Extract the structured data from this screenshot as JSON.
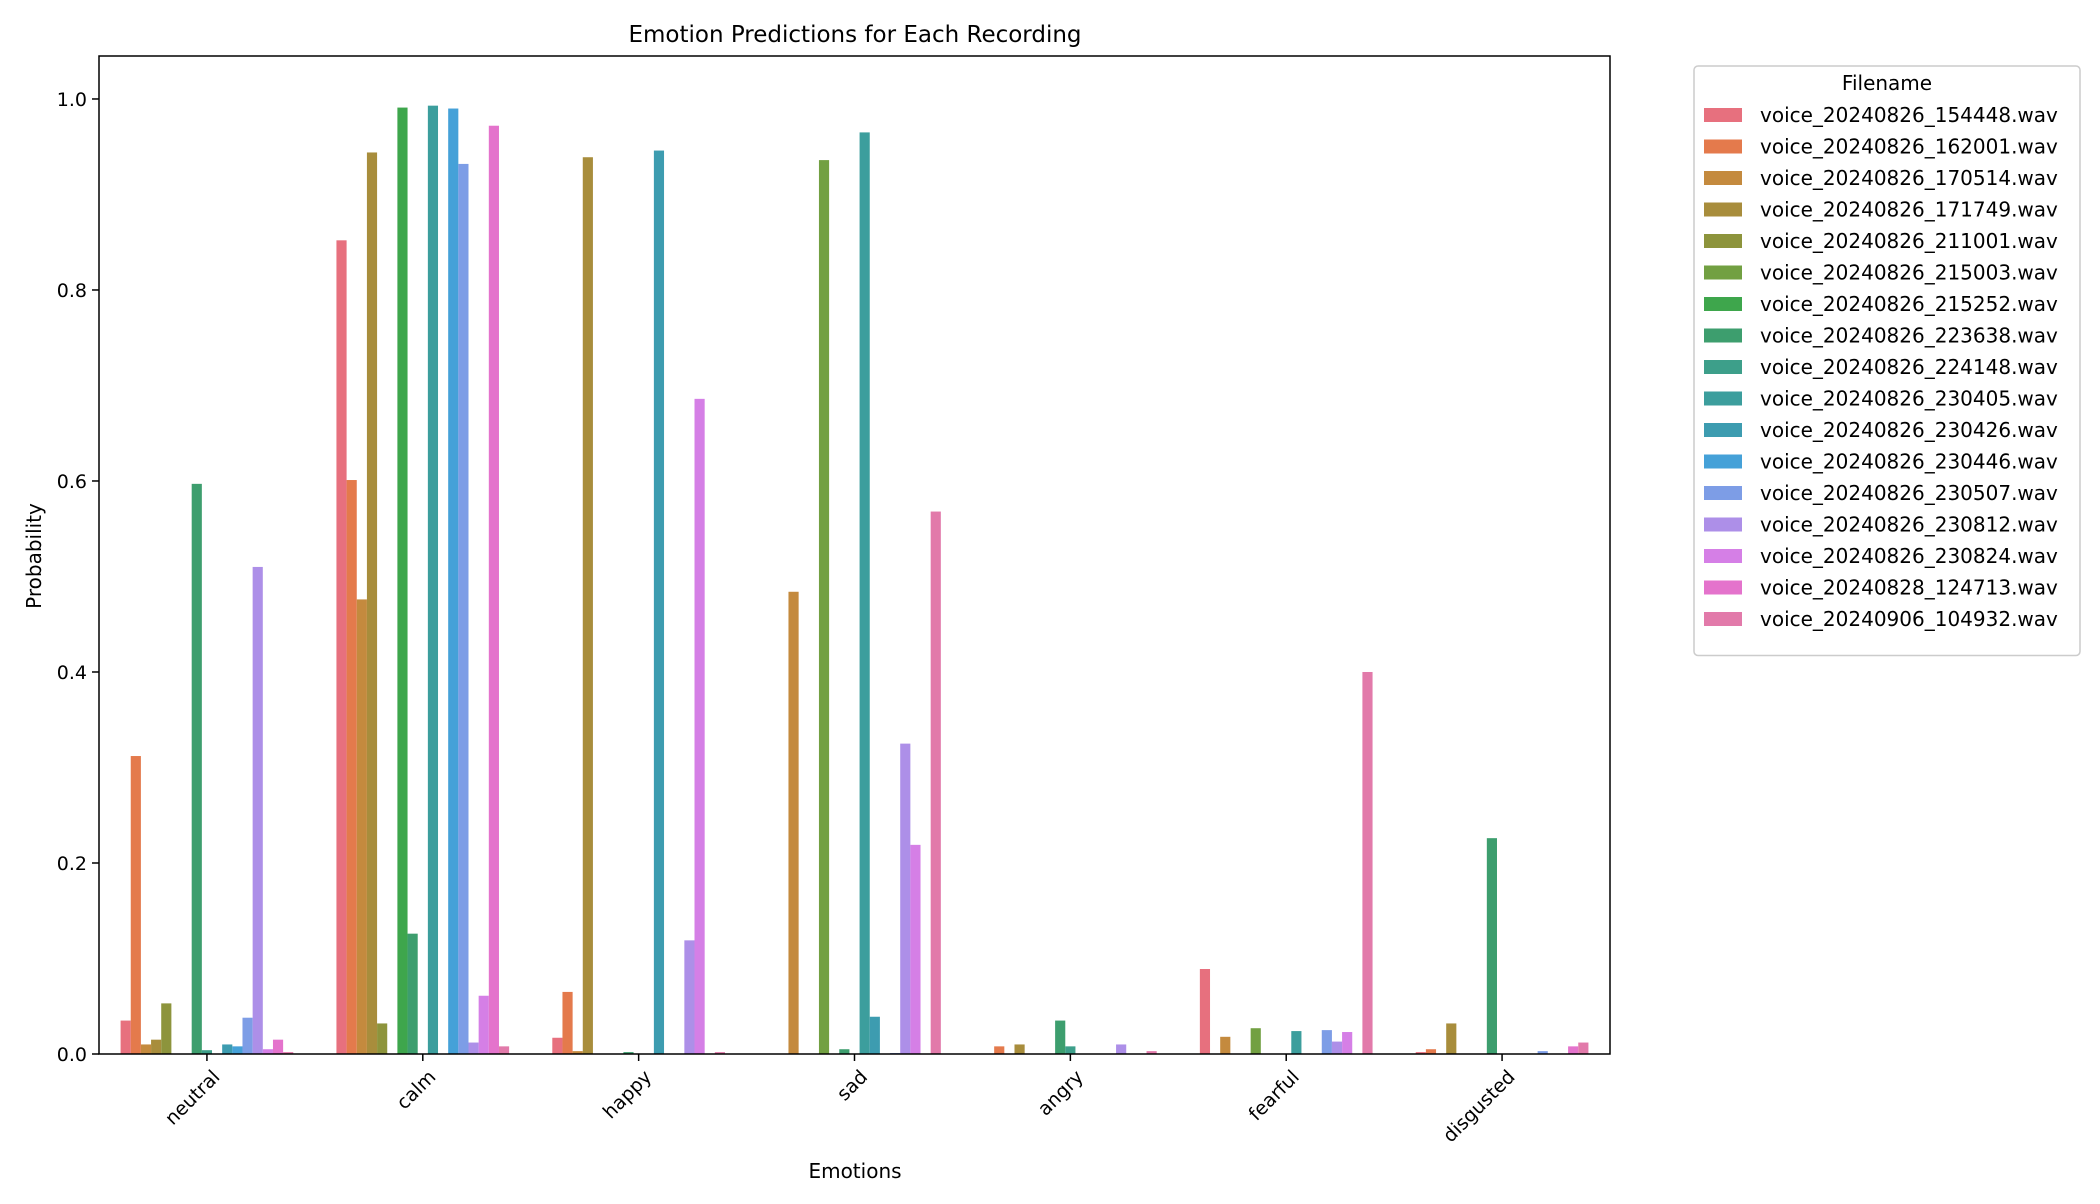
{
  "chart_data": {
    "type": "bar",
    "title": "Emotion Predictions for Each Recording",
    "xlabel": "Emotions",
    "ylabel": "Probability",
    "ylim": [
      0,
      1.045
    ],
    "yticks": [
      "0.0",
      "0.2",
      "0.4",
      "0.6",
      "0.8",
      "1.0"
    ],
    "grid": false,
    "legend": {
      "title": "Filename",
      "placement": "outside-right"
    },
    "categories": [
      "neutral",
      "calm",
      "happy",
      "sad",
      "angry",
      "fearful",
      "disgusted"
    ],
    "series": [
      {
        "name": "voice_20240826_154448.wav",
        "color": "#e7707e",
        "values": [
          0.035,
          0.852,
          0.017,
          0.0,
          0.0,
          0.089,
          0.002
        ]
      },
      {
        "name": "voice_20240826_162001.wav",
        "color": "#e47a4c",
        "values": [
          0.312,
          0.601,
          0.065,
          0.0,
          0.008,
          0.0,
          0.005
        ]
      },
      {
        "name": "voice_20240826_170514.wav",
        "color": "#c48a3e",
        "values": [
          0.01,
          0.476,
          0.003,
          0.484,
          0.0,
          0.018,
          0.0
        ]
      },
      {
        "name": "voice_20240826_171749.wav",
        "color": "#a88d3c",
        "values": [
          0.015,
          0.944,
          0.939,
          0.0,
          0.01,
          0.0,
          0.032
        ]
      },
      {
        "name": "voice_20240826_211001.wav",
        "color": "#8d943c",
        "values": [
          0.053,
          0.032,
          0.0,
          0.0,
          0.0,
          0.0,
          0.0
        ]
      },
      {
        "name": "voice_20240826_215003.wav",
        "color": "#72a042",
        "values": [
          0.0,
          0.0,
          0.0,
          0.936,
          0.0,
          0.027,
          0.0
        ]
      },
      {
        "name": "voice_20240826_215252.wav",
        "color": "#3ea64c",
        "values": [
          0.0,
          0.991,
          0.0,
          0.0,
          0.0,
          0.0,
          0.0
        ]
      },
      {
        "name": "voice_20240826_223638.wav",
        "color": "#3d9e6e",
        "values": [
          0.597,
          0.126,
          0.002,
          0.005,
          0.035,
          0.0,
          0.226
        ]
      },
      {
        "name": "voice_20240826_224148.wav",
        "color": "#3d9f8a",
        "values": [
          0.004,
          0.0,
          0.0,
          0.0,
          0.008,
          0.0,
          0.0
        ]
      },
      {
        "name": "voice_20240826_230405.wav",
        "color": "#3c9e9d",
        "values": [
          0.0,
          0.993,
          0.0,
          0.965,
          0.0,
          0.024,
          0.0
        ]
      },
      {
        "name": "voice_20240826_230426.wav",
        "color": "#3d9cb0",
        "values": [
          0.01,
          0.0,
          0.946,
          0.039,
          0.0,
          0.0,
          0.0
        ]
      },
      {
        "name": "voice_20240826_230446.wav",
        "color": "#45a1d8",
        "values": [
          0.008,
          0.99,
          0.0,
          0.0,
          0.0,
          0.0,
          0.0
        ]
      },
      {
        "name": "voice_20240826_230507.wav",
        "color": "#7d9de6",
        "values": [
          0.038,
          0.932,
          0.0,
          0.001,
          0.0,
          0.025,
          0.003
        ]
      },
      {
        "name": "voice_20240826_230812.wav",
        "color": "#ad8fe8",
        "values": [
          0.51,
          0.012,
          0.119,
          0.325,
          0.01,
          0.013,
          0.0
        ]
      },
      {
        "name": "voice_20240826_230824.wav",
        "color": "#d57fe6",
        "values": [
          0.005,
          0.061,
          0.686,
          0.219,
          0.0,
          0.023,
          0.0
        ]
      },
      {
        "name": "voice_20240828_124713.wav",
        "color": "#e473cc",
        "values": [
          0.015,
          0.972,
          0.0,
          0.0,
          0.0,
          0.0,
          0.008
        ]
      },
      {
        "name": "voice_20240906_104932.wav",
        "color": "#e27aaa",
        "values": [
          0.002,
          0.008,
          0.002,
          0.568,
          0.003,
          0.4,
          0.012
        ]
      }
    ]
  }
}
